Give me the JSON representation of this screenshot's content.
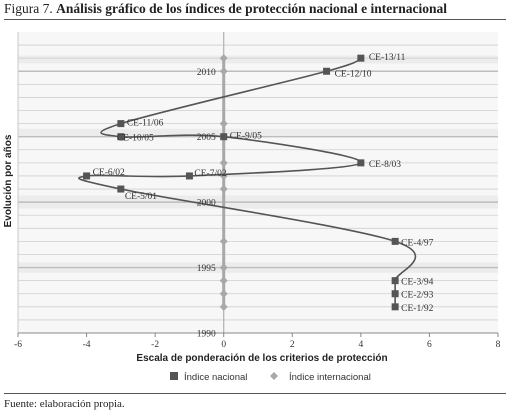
{
  "figure": {
    "number": "Figura 7.",
    "title": "Análisis gráfico de los índices de protección nacional e internacional",
    "source": "Fuente: elaboración propia."
  },
  "chart_data": {
    "type": "line",
    "xlabel": "Escala de ponderación de los criterios de protección",
    "ylabel": "Evolución por años",
    "xlim": [
      -6,
      8
    ],
    "ylim": [
      1990,
      2013
    ],
    "x_ticks": [
      -6,
      -4,
      -2,
      0,
      2,
      4,
      6,
      8
    ],
    "y_ticks": [
      1990,
      1995,
      2000,
      2005,
      2010
    ],
    "grid": true,
    "legend_position": "bottom",
    "colors": {
      "nacional": "#555555",
      "internacional": "#a8a8a8",
      "grid": "#cfcfcf",
      "band": "#ececec"
    },
    "series": [
      {
        "name": "Índice nacional",
        "marker": "square",
        "points": [
          {
            "label": "CE-1/92",
            "x": 5,
            "y": 1992
          },
          {
            "label": "CE-2/93",
            "x": 5,
            "y": 1993
          },
          {
            "label": "CE-3/94",
            "x": 5,
            "y": 1994
          },
          {
            "label": "CE-4/97",
            "x": 5,
            "y": 1997
          },
          {
            "label": "CE-5/01",
            "x": -3,
            "y": 2001
          },
          {
            "label": "CE-6/02",
            "x": -4,
            "y": 2002
          },
          {
            "label": "CE-7/02",
            "x": -1,
            "y": 2002
          },
          {
            "label": "CE-8/03",
            "x": 4,
            "y": 2003
          },
          {
            "label": "CE-9/05",
            "x": 0,
            "y": 2005
          },
          {
            "label": "CE-10/05",
            "x": -3,
            "y": 2005
          },
          {
            "label": "CE-11/06",
            "x": -3,
            "y": 2006
          },
          {
            "label": "CE-12/10",
            "x": 3,
            "y": 2010
          },
          {
            "label": "CE-13/11",
            "x": 4,
            "y": 2011
          }
        ]
      },
      {
        "name": "Índice internacional",
        "marker": "diamond",
        "points": [
          {
            "x": 0,
            "y": 1992
          },
          {
            "x": 0,
            "y": 1993
          },
          {
            "x": 0,
            "y": 1994
          },
          {
            "x": 0,
            "y": 1995
          },
          {
            "x": 0,
            "y": 1997
          },
          {
            "x": 0,
            "y": 2001
          },
          {
            "x": 0,
            "y": 2002
          },
          {
            "x": 0,
            "y": 2003
          },
          {
            "x": 0,
            "y": 2005
          },
          {
            "x": 0,
            "y": 2006
          },
          {
            "x": 0,
            "y": 2010
          },
          {
            "x": 0,
            "y": 2011
          }
        ]
      }
    ]
  }
}
